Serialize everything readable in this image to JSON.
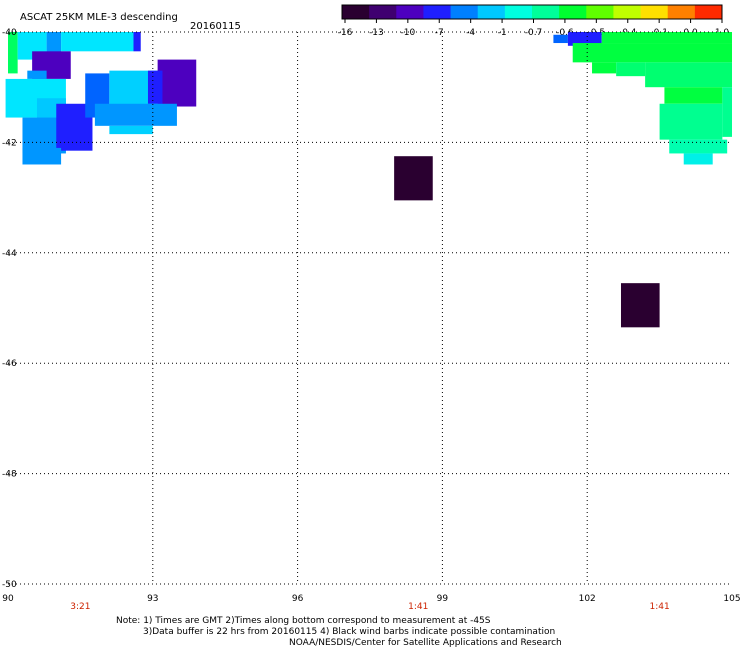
{
  "chart_data": {
    "type": "heatmap",
    "title": "ASCAT 25KM MLE-3 descending",
    "date": "20160115",
    "xlim": [
      90,
      105
    ],
    "ylim": [
      -50,
      -40
    ],
    "x_ticks": [
      "90",
      "93",
      "96",
      "99",
      "102",
      "105"
    ],
    "y_ticks": [
      "-40",
      "-42",
      "-44",
      "-46",
      "-48",
      "-50"
    ],
    "grid": true,
    "grid_style": "dotted",
    "colorbar": {
      "ticks": [
        "-16",
        "-13",
        "-10",
        "-7",
        "-4",
        "-1",
        "-0.7",
        "-0.6",
        "-0.5",
        "-0.4",
        "-0.1",
        "0.0",
        "1.0"
      ],
      "colors": [
        "#2a0030",
        "#3f0070",
        "#4d00bf",
        "#1f1fff",
        "#0080ff",
        "#00c8ff",
        "#00ffe0",
        "#00ff9a",
        "#00ff30",
        "#60ff00",
        "#c0ff00",
        "#ffe000",
        "#ff8000",
        "#ff2a00"
      ],
      "placement": "top-right"
    },
    "times": [
      {
        "lon": 91.5,
        "label": "3:21"
      },
      {
        "lon": 98.5,
        "label": "1:41"
      },
      {
        "lon": 103.5,
        "label": "1:41"
      }
    ],
    "cells": [
      {
        "lon0": 90.0,
        "lon1": 90.2,
        "lat0": -40.0,
        "lat1": -40.75,
        "color": "#00ff60"
      },
      {
        "lon0": 90.2,
        "lon1": 90.8,
        "lat0": -40.0,
        "lat1": -40.5,
        "color": "#00e6ff"
      },
      {
        "lon0": 90.8,
        "lon1": 91.1,
        "lat0": -40.0,
        "lat1": -40.4,
        "color": "#0096ff"
      },
      {
        "lon0": 91.1,
        "lon1": 92.6,
        "lat0": -40.0,
        "lat1": -40.35,
        "color": "#00e6ff"
      },
      {
        "lon0": 92.6,
        "lon1": 92.75,
        "lat0": -40.0,
        "lat1": -40.35,
        "color": "#1f1fff"
      },
      {
        "lon0": 90.5,
        "lon1": 91.3,
        "lat0": -40.35,
        "lat1": -40.85,
        "color": "#4d00bf"
      },
      {
        "lon0": 90.4,
        "lon1": 90.8,
        "lat0": -40.7,
        "lat1": -40.85,
        "color": "#0096ff"
      },
      {
        "lon0": 89.95,
        "lon1": 91.2,
        "lat0": -40.85,
        "lat1": -41.55,
        "color": "#00e6ff"
      },
      {
        "lon0": 90.6,
        "lon1": 91.2,
        "lat0": -41.2,
        "lat1": -41.7,
        "color": "#00c8ff"
      },
      {
        "lon0": 90.3,
        "lon1": 91.2,
        "lat0": -41.55,
        "lat1": -42.2,
        "color": "#0096ff"
      },
      {
        "lon0": 91.2,
        "lon1": 91.45,
        "lat0": -41.55,
        "lat1": -42.05,
        "color": "#00e6ff"
      },
      {
        "lon0": 91.0,
        "lon1": 91.75,
        "lat0": -41.3,
        "lat1": -42.15,
        "color": "#1f1fff"
      },
      {
        "lon0": 90.3,
        "lon1": 91.1,
        "lat0": -42.1,
        "lat1": -42.4,
        "color": "#0096ff"
      },
      {
        "lon0": 91.6,
        "lon1": 92.1,
        "lat0": -40.75,
        "lat1": -41.55,
        "color": "#0064ff"
      },
      {
        "lon0": 92.1,
        "lon1": 93.1,
        "lat0": -40.7,
        "lat1": -41.6,
        "color": "#00d0ff"
      },
      {
        "lon0": 93.1,
        "lon1": 93.9,
        "lat0": -40.5,
        "lat1": -41.35,
        "color": "#4d00bf"
      },
      {
        "lon0": 92.9,
        "lon1": 93.2,
        "lat0": -40.7,
        "lat1": -41.3,
        "color": "#1f1fff"
      },
      {
        "lon0": 91.8,
        "lon1": 93.5,
        "lat0": -41.3,
        "lat1": -41.7,
        "color": "#0096ff"
      },
      {
        "lon0": 92.1,
        "lon1": 93.0,
        "lat0": -41.7,
        "lat1": -41.85,
        "color": "#00d0ff"
      },
      {
        "lon0": 98.0,
        "lon1": 98.8,
        "lat0": -42.25,
        "lat1": -43.05,
        "color": "#2a0030"
      },
      {
        "lon0": 102.7,
        "lon1": 103.5,
        "lat0": -44.55,
        "lat1": -45.35,
        "color": "#2a0030"
      },
      {
        "lon0": 101.3,
        "lon1": 101.6,
        "lat0": -40.05,
        "lat1": -40.2,
        "color": "#0064ff"
      },
      {
        "lon0": 101.6,
        "lon1": 102.3,
        "lat0": -40.0,
        "lat1": -40.25,
        "color": "#1f1fff"
      },
      {
        "lon0": 102.3,
        "lon1": 105.0,
        "lat0": -40.0,
        "lat1": -40.2,
        "color": "#00ff40"
      },
      {
        "lon0": 101.7,
        "lon1": 105.0,
        "lat0": -40.2,
        "lat1": -40.55,
        "color": "#00ff40"
      },
      {
        "lon0": 102.1,
        "lon1": 102.6,
        "lat0": -40.55,
        "lat1": -40.75,
        "color": "#00ff40"
      },
      {
        "lon0": 102.6,
        "lon1": 103.2,
        "lat0": -40.55,
        "lat1": -40.8,
        "color": "#00ff70"
      },
      {
        "lon0": 103.2,
        "lon1": 105.0,
        "lat0": -40.55,
        "lat1": -41.0,
        "color": "#00ff70"
      },
      {
        "lon0": 103.6,
        "lon1": 104.8,
        "lat0": -41.0,
        "lat1": -41.3,
        "color": "#00ff40"
      },
      {
        "lon0": 104.8,
        "lon1": 105.0,
        "lat0": -41.0,
        "lat1": -41.9,
        "color": "#00ff90"
      },
      {
        "lon0": 103.5,
        "lon1": 104.8,
        "lat0": -41.3,
        "lat1": -41.95,
        "color": "#00ff90"
      },
      {
        "lon0": 103.7,
        "lon1": 104.9,
        "lat0": -41.95,
        "lat1": -42.2,
        "color": "#00ffb0"
      },
      {
        "lon0": 104.0,
        "lon1": 104.6,
        "lat0": -42.2,
        "lat1": -42.4,
        "color": "#00f0e8"
      }
    ]
  },
  "notes": [
    "Note: 1) Times are GMT 2)Times along bottom correspond to measurement at -45S",
    "3)Data buffer is 22 hrs from 20160115 4) Black wind barbs indicate possible contamination",
    "NOAA/NESDIS/Center for Satellite Applications and Research"
  ]
}
